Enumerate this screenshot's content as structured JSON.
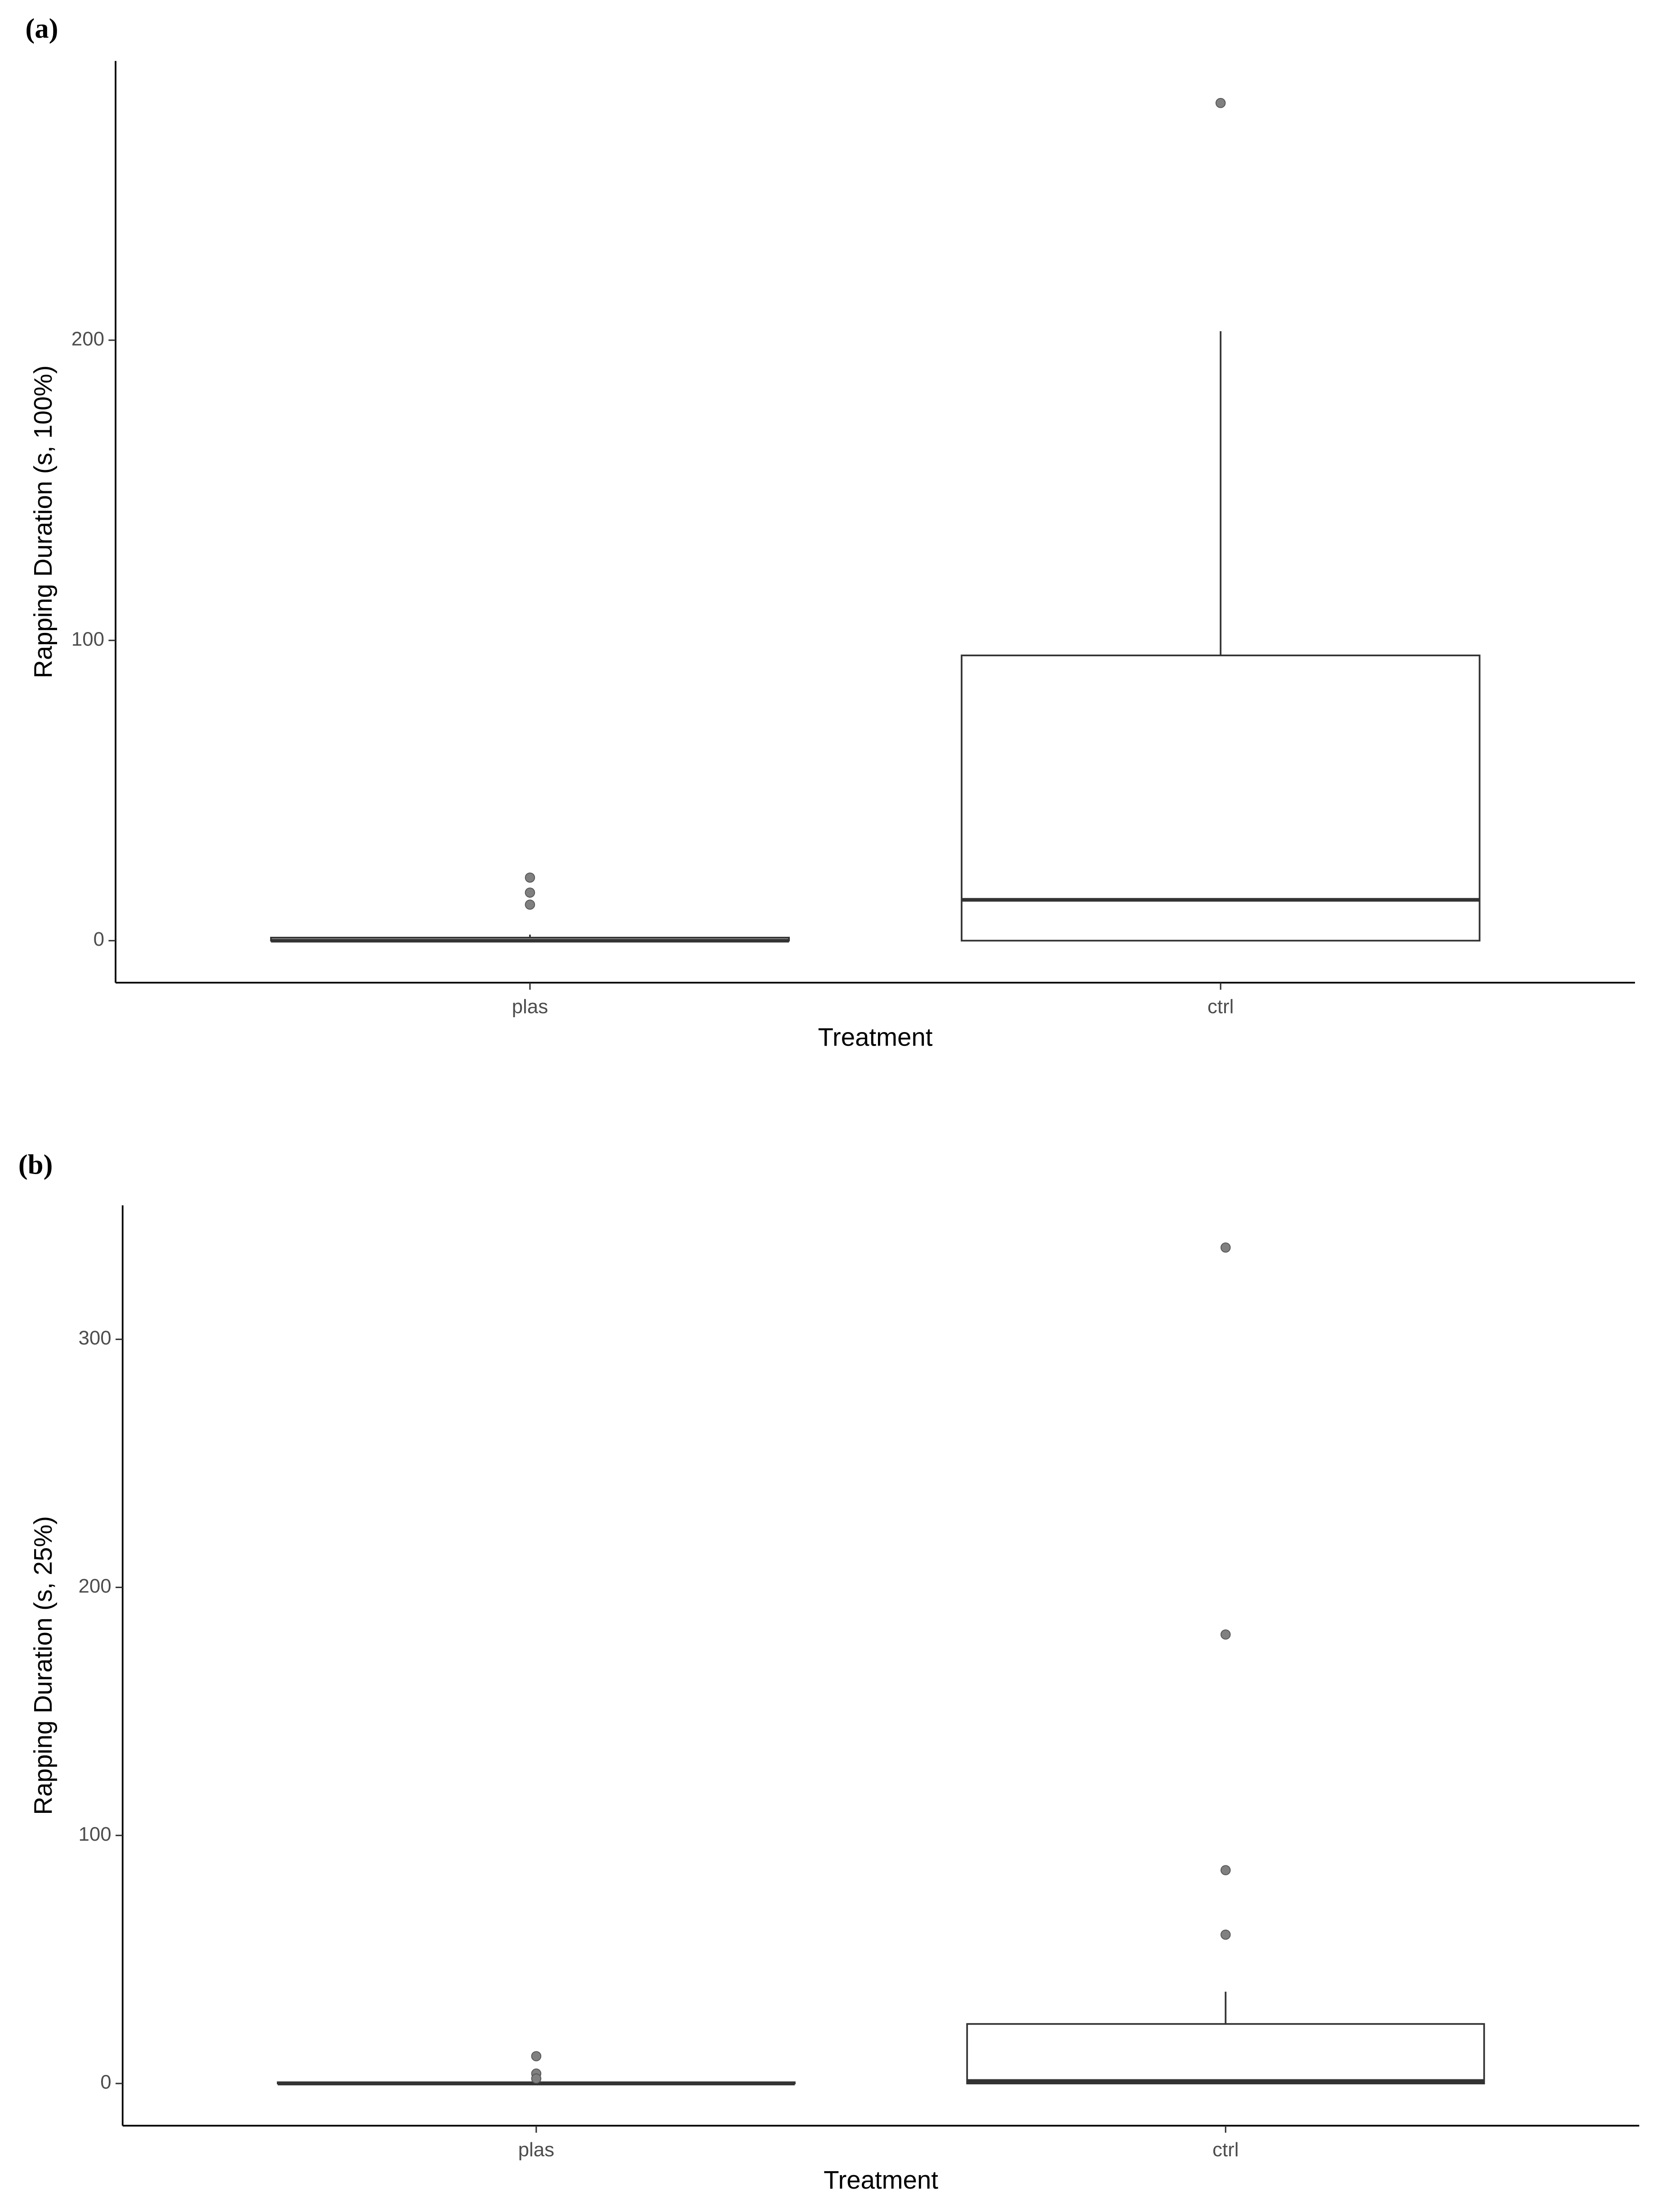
{
  "chart_data": [
    {
      "type": "box",
      "panel_label": "(a)",
      "y_label": "Rapping Duration (s, 100%)",
      "x_label": "Treatment",
      "categories": [
        "plas",
        "ctrl"
      ],
      "color": "#333333",
      "outlier_color": "#808080",
      "ylim": [
        -14,
        293
      ],
      "yticks": [
        0,
        100,
        200
      ],
      "boxes": [
        {
          "min": 0,
          "q1": 0,
          "median": 0,
          "q3": 1,
          "max": 2,
          "outliers": [
            21,
            16,
            12
          ]
        },
        {
          "min": 0,
          "q1": 0,
          "median": 13.6,
          "q3": 95,
          "max": 203,
          "outliers": [
            279
          ]
        }
      ]
    },
    {
      "type": "box",
      "panel_label": "(b)",
      "y_label": "Rapping Duration (s, 25%)",
      "x_label": "Treatment",
      "categories": [
        "plas",
        "ctrl"
      ],
      "color": "#333333",
      "outlier_color": "#808080",
      "ylim": [
        -17,
        354
      ],
      "yticks": [
        0,
        100,
        200,
        300
      ],
      "boxes": [
        {
          "min": 0,
          "q1": 0,
          "median": 0,
          "q3": 0.5,
          "max": 1,
          "outliers": [
            11,
            4,
            2
          ]
        },
        {
          "min": 0,
          "q1": 0,
          "median": 1,
          "q3": 24,
          "max": 37,
          "outliers": [
            337,
            181,
            86,
            60
          ]
        }
      ]
    }
  ]
}
